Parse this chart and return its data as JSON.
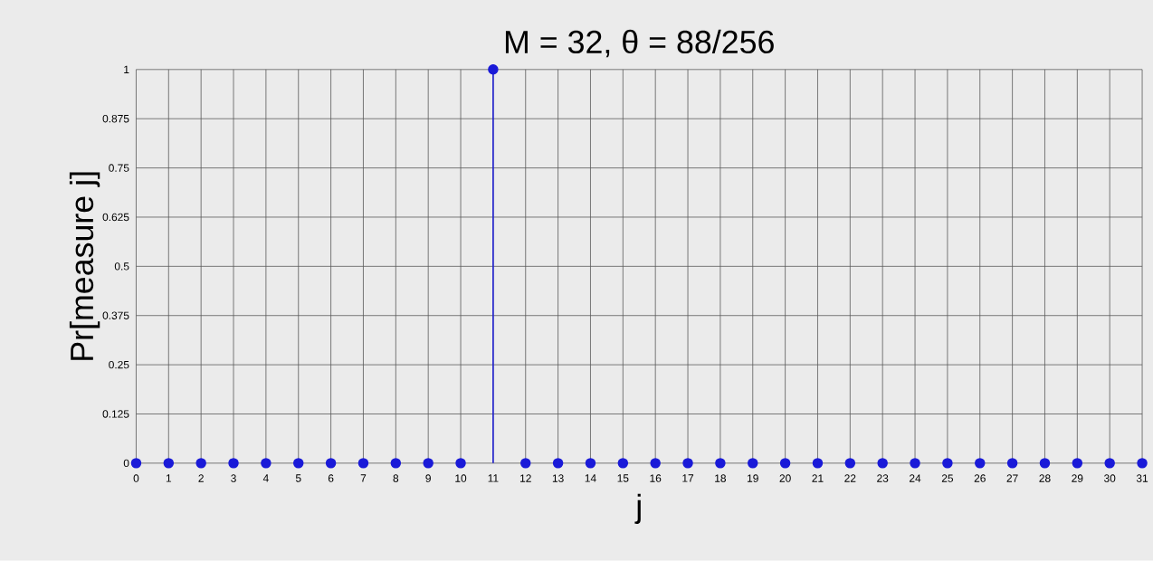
{
  "chart_data": {
    "type": "lollipop",
    "title": "M = 32,  θ = 88/256",
    "xlabel": "j",
    "ylabel": "Pr[measure j]",
    "x": [
      0,
      1,
      2,
      3,
      4,
      5,
      6,
      7,
      8,
      9,
      10,
      11,
      12,
      13,
      14,
      15,
      16,
      17,
      18,
      19,
      20,
      21,
      22,
      23,
      24,
      25,
      26,
      27,
      28,
      29,
      30,
      31
    ],
    "values": [
      0,
      0,
      0,
      0,
      0,
      0,
      0,
      0,
      0,
      0,
      0,
      1,
      0,
      0,
      0,
      0,
      0,
      0,
      0,
      0,
      0,
      0,
      0,
      0,
      0,
      0,
      0,
      0,
      0,
      0,
      0,
      0
    ],
    "color": "#1a1ad8",
    "xlim": [
      0,
      31
    ],
    "xticks": [
      0,
      1,
      2,
      3,
      4,
      5,
      6,
      7,
      8,
      9,
      10,
      11,
      12,
      13,
      14,
      15,
      16,
      17,
      18,
      19,
      20,
      21,
      22,
      23,
      24,
      25,
      26,
      27,
      28,
      29,
      30,
      31
    ],
    "ylim": [
      0,
      1
    ],
    "yticks": [
      0,
      0.125,
      0.25,
      0.375,
      0.5,
      0.625,
      0.75,
      0.875,
      1
    ],
    "grid": true,
    "marker": "circle"
  }
}
